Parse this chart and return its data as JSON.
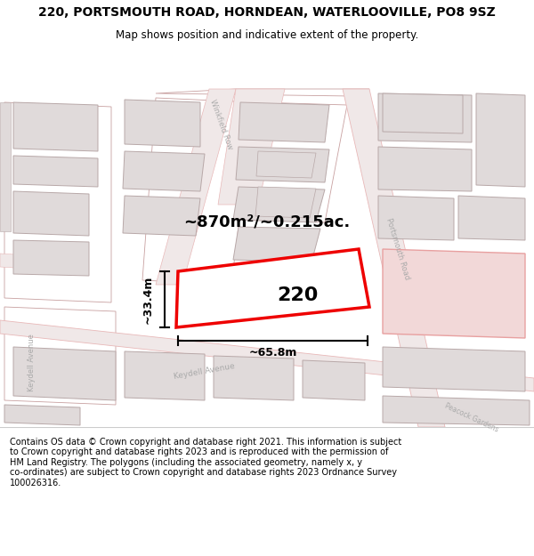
{
  "title": "220, PORTSMOUTH ROAD, HORNDEAN, WATERLOOVILLE, PO8 9SZ",
  "subtitle": "Map shows position and indicative extent of the property.",
  "footer": "Contains OS data © Crown copyright and database right 2021. This information is subject\nto Crown copyright and database rights 2023 and is reproduced with the permission of\nHM Land Registry. The polygons (including the associated geometry, namely x, y\nco-ordinates) are subject to Crown copyright and database rights 2023 Ordnance Survey\n100026316.",
  "area_label": "~870m²/~0.215ac.",
  "width_label": "~65.8m",
  "height_label": "~33.4m",
  "property_number": "220",
  "map_bg": "#f9f6f6",
  "road_fill": "#f0e8e8",
  "road_edge": "#e8b8b8",
  "bld_fill": "#e0dada",
  "bld_edge": "#b8a8a8",
  "plot_edge": "#c8a0a0",
  "prop_edge": "#ee0000",
  "prop_fill": "#ffffff",
  "highlight_fill": "#f2d8d8",
  "highlight_edge": "#e8a0a0",
  "road_label_color": "#aaaaaa",
  "dim_color": "#000000",
  "title_fontsize": 10,
  "subtitle_fontsize": 8.5,
  "footer_fontsize": 7.0
}
